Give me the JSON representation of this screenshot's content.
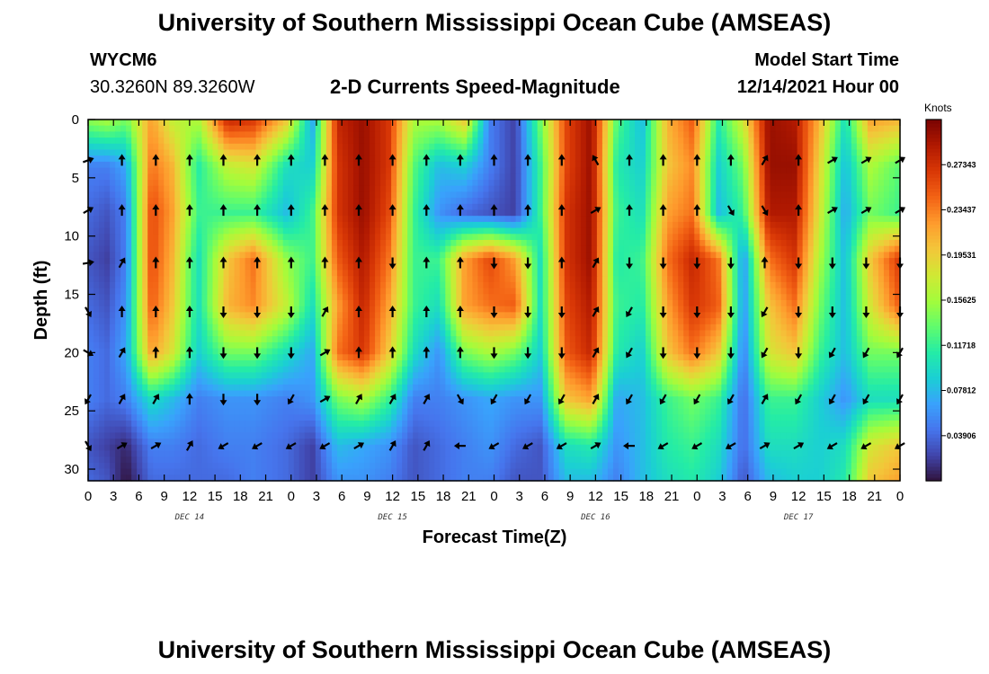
{
  "header": {
    "title": "University of Southern Mississippi Ocean Cube (AMSEAS)",
    "station": "WYCM6",
    "coordinates": "30.3260N  89.3260W",
    "plot_title": "2-D Currents Speed-Magnitude",
    "model_start_label": "Model Start Time",
    "model_start_value": "12/14/2021 Hour 00"
  },
  "footer": {
    "title": "University of Southern Mississippi Ocean Cube (AMSEAS)"
  },
  "chart_data": {
    "type": "heatmap",
    "xlabel": "Forecast Time(Z)",
    "ylabel": "Depth (ft)",
    "x_tick_labels": [
      "0",
      "3",
      "6",
      "9",
      "12",
      "15",
      "18",
      "21",
      "0",
      "3",
      "6",
      "9",
      "12",
      "15",
      "18",
      "21",
      "0",
      "3",
      "6",
      "9",
      "12",
      "15",
      "18",
      "21",
      "0",
      "3",
      "6",
      "9",
      "12",
      "15",
      "18",
      "21",
      "0"
    ],
    "x_range_hours": [
      0,
      96
    ],
    "date_labels": [
      {
        "text": "DEC 14",
        "hour": 12
      },
      {
        "text": "DEC 15",
        "hour": 36
      },
      {
        "text": "DEC 16",
        "hour": 60
      },
      {
        "text": "DEC 17",
        "hour": 84
      }
    ],
    "y_tick_labels": [
      "0",
      "5",
      "10",
      "15",
      "20",
      "25",
      "30"
    ],
    "y_ticks": [
      0,
      5,
      10,
      15,
      20,
      25,
      30
    ],
    "y_range_ft": [
      0,
      31
    ],
    "y_inverted": true,
    "colorbar": {
      "units": "Knots",
      "min": 0,
      "max": 0.3125,
      "tick_values": [
        0.039,
        0.07812,
        0.11718,
        0.15625,
        0.19531,
        0.23437,
        0.27343
      ],
      "tick_labels": [
        "0.03906",
        "0.07812",
        "0.11718",
        "0.15625",
        "0.19531",
        "0.23437",
        "0.27343"
      ],
      "colors": [
        "#30123b",
        "#4145ab",
        "#4675ed",
        "#39a2fc",
        "#1bcfd4",
        "#24eca6",
        "#61fc6c",
        "#a4fc3b",
        "#d1e834",
        "#f3c63a",
        "#fe9b2d",
        "#f36315",
        "#d93806",
        "#b11901",
        "#7a0402"
      ]
    },
    "column_hours": [
      0,
      2.25,
      4.5,
      7.5,
      10,
      13,
      16.5,
      19.5,
      23.5,
      26.5,
      29.5,
      32.5,
      35.5,
      38.5,
      41.5,
      44.5,
      47.5,
      50.5,
      53.5,
      56.5,
      59.5,
      62.5,
      65.5,
      68.5,
      71.5,
      74.5,
      77.5,
      80.5,
      83.5,
      86.5,
      89.5,
      92.5,
      96
    ],
    "row_depths_ft": [
      0,
      4,
      8,
      12,
      16,
      20,
      24,
      28,
      31
    ],
    "speed_knots_rows": [
      [
        0.15,
        0.16,
        0.14,
        0.22,
        0.17,
        0.16,
        0.28,
        0.27,
        0.2,
        0.07,
        0.28,
        0.3,
        0.27,
        0.16,
        0.16,
        0.2,
        0.05,
        0.02,
        0.14,
        0.26,
        0.3,
        0.13,
        0.08,
        0.21,
        0.25,
        0.11,
        0.18,
        0.3,
        0.29,
        0.21,
        0.1,
        0.22,
        0.21
      ],
      [
        0.05,
        0.05,
        0.07,
        0.24,
        0.21,
        0.11,
        0.17,
        0.18,
        0.1,
        0.09,
        0.27,
        0.3,
        0.27,
        0.13,
        0.08,
        0.09,
        0.05,
        0.02,
        0.12,
        0.26,
        0.3,
        0.11,
        0.09,
        0.2,
        0.23,
        0.09,
        0.14,
        0.3,
        0.3,
        0.19,
        0.08,
        0.16,
        0.13
      ],
      [
        0.04,
        0.03,
        0.05,
        0.26,
        0.22,
        0.12,
        0.12,
        0.12,
        0.08,
        0.12,
        0.27,
        0.3,
        0.26,
        0.12,
        0.06,
        0.04,
        0.03,
        0.02,
        0.12,
        0.27,
        0.3,
        0.12,
        0.1,
        0.22,
        0.24,
        0.08,
        0.12,
        0.29,
        0.29,
        0.18,
        0.07,
        0.14,
        0.12
      ],
      [
        0.03,
        0.02,
        0.05,
        0.26,
        0.21,
        0.1,
        0.2,
        0.24,
        0.15,
        0.12,
        0.25,
        0.29,
        0.24,
        0.12,
        0.12,
        0.22,
        0.26,
        0.22,
        0.1,
        0.27,
        0.3,
        0.11,
        0.12,
        0.24,
        0.28,
        0.24,
        0.06,
        0.24,
        0.27,
        0.16,
        0.08,
        0.2,
        0.27
      ],
      [
        0.04,
        0.03,
        0.06,
        0.25,
        0.2,
        0.1,
        0.21,
        0.23,
        0.17,
        0.1,
        0.22,
        0.28,
        0.22,
        0.12,
        0.1,
        0.22,
        0.24,
        0.25,
        0.1,
        0.26,
        0.29,
        0.12,
        0.11,
        0.22,
        0.27,
        0.25,
        0.06,
        0.2,
        0.24,
        0.14,
        0.08,
        0.18,
        0.25
      ],
      [
        0.05,
        0.04,
        0.07,
        0.22,
        0.18,
        0.09,
        0.14,
        0.14,
        0.1,
        0.07,
        0.24,
        0.27,
        0.2,
        0.1,
        0.06,
        0.14,
        0.16,
        0.14,
        0.09,
        0.25,
        0.28,
        0.11,
        0.09,
        0.2,
        0.24,
        0.2,
        0.05,
        0.18,
        0.2,
        0.12,
        0.08,
        0.14,
        0.14
      ],
      [
        0.05,
        0.04,
        0.05,
        0.1,
        0.08,
        0.05,
        0.06,
        0.06,
        0.05,
        0.06,
        0.14,
        0.16,
        0.12,
        0.05,
        0.05,
        0.06,
        0.07,
        0.06,
        0.06,
        0.2,
        0.22,
        0.07,
        0.08,
        0.12,
        0.14,
        0.12,
        0.04,
        0.12,
        0.12,
        0.09,
        0.06,
        0.1,
        0.1
      ],
      [
        0.03,
        0.02,
        0.01,
        0.05,
        0.05,
        0.04,
        0.05,
        0.05,
        0.04,
        0.02,
        0.08,
        0.07,
        0.06,
        0.03,
        0.04,
        0.05,
        0.06,
        0.04,
        0.03,
        0.1,
        0.11,
        0.06,
        0.08,
        0.11,
        0.12,
        0.1,
        0.04,
        0.1,
        0.1,
        0.09,
        0.1,
        0.18,
        0.2
      ],
      [
        0.04,
        0.03,
        0.0,
        0.04,
        0.04,
        0.04,
        0.04,
        0.05,
        0.04,
        0.02,
        0.06,
        0.06,
        0.05,
        0.03,
        0.04,
        0.05,
        0.05,
        0.03,
        0.03,
        0.08,
        0.08,
        0.05,
        0.08,
        0.1,
        0.11,
        0.09,
        0.03,
        0.08,
        0.09,
        0.09,
        0.11,
        0.2,
        0.22
      ]
    ],
    "vector_hours": [
      0,
      4,
      8,
      12,
      16,
      20,
      24,
      28,
      32,
      36,
      40,
      44,
      48,
      52,
      56,
      60,
      64,
      68,
      72,
      76,
      80,
      84,
      88,
      92,
      96
    ],
    "vector_depths_ft": [
      3.5,
      7.8,
      12.3,
      16.5,
      20,
      24,
      28
    ],
    "vector_direction_deg": [
      [
        70,
        0,
        0,
        0,
        0,
        0,
        0,
        0,
        0,
        0,
        0,
        0,
        0,
        0,
        0,
        330,
        0,
        0,
        0,
        0,
        30,
        0,
        60,
        60,
        60
      ],
      [
        60,
        0,
        0,
        0,
        0,
        0,
        0,
        0,
        0,
        0,
        0,
        0,
        0,
        0,
        0,
        60,
        0,
        0,
        0,
        150,
        150,
        0,
        60,
        60,
        60
      ],
      [
        80,
        30,
        0,
        0,
        0,
        0,
        0,
        0,
        0,
        180,
        0,
        0,
        180,
        180,
        0,
        30,
        180,
        180,
        180,
        180,
        0,
        180,
        180,
        180,
        180
      ],
      [
        150,
        0,
        0,
        0,
        180,
        180,
        180,
        30,
        0,
        0,
        0,
        0,
        180,
        180,
        180,
        30,
        210,
        180,
        180,
        180,
        210,
        180,
        180,
        180,
        180
      ],
      [
        120,
        30,
        0,
        0,
        180,
        180,
        180,
        60,
        0,
        0,
        0,
        0,
        180,
        180,
        180,
        30,
        210,
        180,
        180,
        180,
        210,
        180,
        210,
        210,
        210
      ],
      [
        210,
        30,
        30,
        0,
        180,
        180,
        210,
        60,
        30,
        30,
        30,
        150,
        210,
        210,
        210,
        30,
        210,
        210,
        210,
        210,
        30,
        210,
        210,
        210,
        210
      ],
      [
        150,
        60,
        60,
        30,
        240,
        240,
        240,
        240,
        60,
        30,
        30,
        270,
        240,
        240,
        240,
        60,
        270,
        240,
        240,
        240,
        60,
        60,
        240,
        240,
        240
      ]
    ]
  }
}
